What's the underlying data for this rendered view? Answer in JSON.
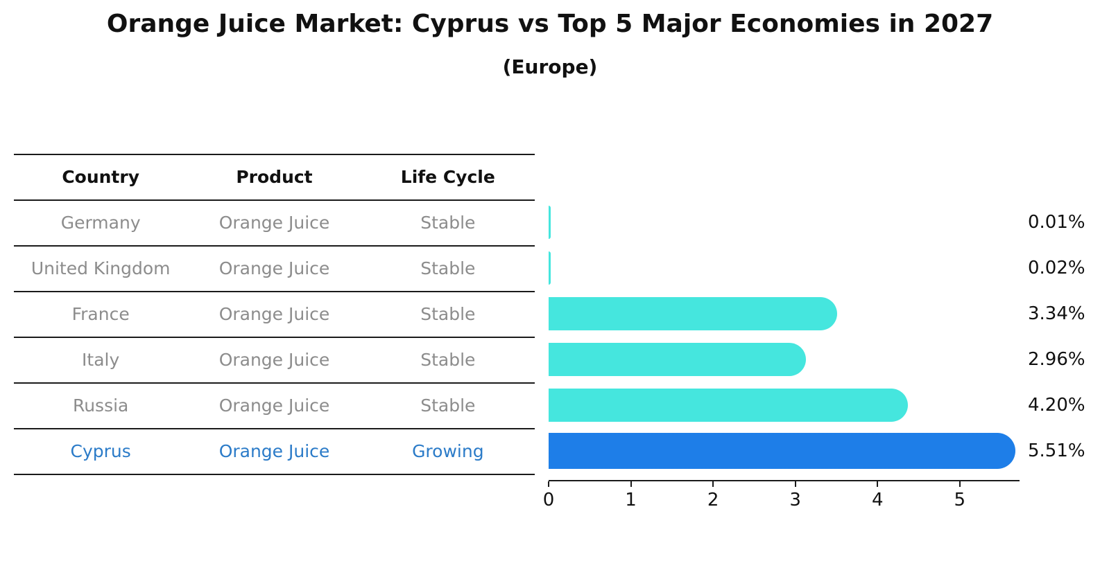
{
  "title": "Orange Juice Market: Cyprus vs Top 5 Major Economies in 2027",
  "subtitle": "(Europe)",
  "table": {
    "headers": [
      "Country",
      "Product",
      "Life Cycle"
    ],
    "rows": [
      {
        "country": "Germany",
        "product": "Orange Juice",
        "life_cycle": "Stable",
        "highlight": false
      },
      {
        "country": "United Kingdom",
        "product": "Orange Juice",
        "life_cycle": "Stable",
        "highlight": false
      },
      {
        "country": "France",
        "product": "Orange Juice",
        "life_cycle": "Stable",
        "highlight": false
      },
      {
        "country": "Italy",
        "product": "Orange Juice",
        "life_cycle": "Stable",
        "highlight": false
      },
      {
        "country": "Russia",
        "product": "Orange Juice",
        "life_cycle": "Stable",
        "highlight": false
      },
      {
        "country": "Cyprus",
        "product": "Orange Juice",
        "life_cycle": "Growing",
        "highlight": true
      }
    ]
  },
  "chart_data": {
    "type": "bar",
    "orientation": "horizontal",
    "title": "Orange Juice Market: Cyprus vs Top 5 Major Economies in 2027",
    "subtitle": "(Europe)",
    "categories": [
      "Germany",
      "United Kingdom",
      "France",
      "Italy",
      "Russia",
      "Cyprus"
    ],
    "values": [
      0.01,
      0.02,
      3.34,
      2.96,
      4.2,
      5.51
    ],
    "value_labels": [
      "0.01%",
      "0.02%",
      "3.34%",
      "2.96%",
      "4.20%",
      "5.51%"
    ],
    "x_ticks": [
      "0",
      "1",
      "2",
      "3",
      "4",
      "5"
    ],
    "xlim": [
      0,
      5.71
    ],
    "grid": false,
    "legend": "none",
    "highlight_index": 5,
    "colors": {
      "default_bar": "#45e6de",
      "highlight_bar": "#1e7ee8",
      "highlight_text": "#2b7bc8",
      "muted_text": "#8c8c8c",
      "axis": "#1a1a1a"
    }
  }
}
